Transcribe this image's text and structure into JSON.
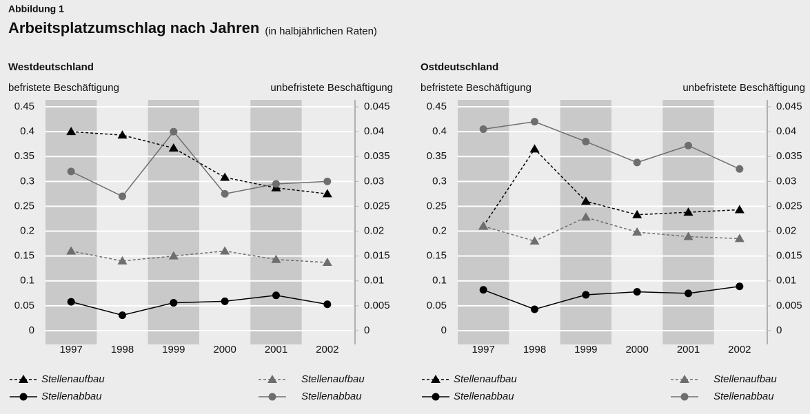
{
  "header": {
    "label": "Abbildung 1",
    "title": "Arbeitsplatzumschlag nach Jahren",
    "subtitle": "(in halbjährlichen Raten)"
  },
  "chart_data": [
    {
      "type": "line",
      "title": "Westdeutschland",
      "ylabel": "befristete Beschäftigung",
      "y2label": "unbefristete Beschäftigung",
      "categories": [
        "1997",
        "1998",
        "1999",
        "2000",
        "2001",
        "2002"
      ],
      "ylim": [
        0,
        0.45
      ],
      "yticks": [
        0,
        0.05,
        0.1,
        0.15,
        0.2,
        0.25,
        0.3,
        0.35,
        0.4,
        0.45
      ],
      "y2lim": [
        0,
        0.045
      ],
      "y2ticks": [
        0,
        0.005,
        0.01,
        0.015,
        0.02,
        0.025,
        0.03,
        0.035,
        0.04,
        0.045
      ],
      "grid": true,
      "series": [
        {
          "name": "Stellenaufbau",
          "color": "#000000",
          "linestyle": "dashed",
          "marker": "triangle",
          "values": [
            0.4,
            0.393,
            0.367,
            0.308,
            0.287,
            0.275
          ]
        },
        {
          "name": "Stellenabbau",
          "color": "#000000",
          "linestyle": "solid",
          "marker": "circle",
          "values": [
            0.058,
            0.031,
            0.056,
            0.059,
            0.071,
            0.053
          ]
        },
        {
          "name": "Stellenaufbau",
          "color": "#6e6e6e",
          "linestyle": "dashed",
          "marker": "triangle",
          "axis": "y2",
          "values": [
            0.016,
            0.014,
            0.015,
            0.016,
            0.0143,
            0.0137
          ]
        },
        {
          "name": "Stellenabbau",
          "color": "#6e6e6e",
          "linestyle": "solid",
          "marker": "circle",
          "axis": "y2",
          "values": [
            0.032,
            0.027,
            0.04,
            0.0275,
            0.0295,
            0.03
          ]
        }
      ]
    },
    {
      "type": "line",
      "title": "Ostdeutschland",
      "ylabel": "befristete Beschäftigung",
      "y2label": "unbefristete Beschäftigung",
      "categories": [
        "1997",
        "1998",
        "1999",
        "2000",
        "2001",
        "2002"
      ],
      "ylim": [
        0,
        0.45
      ],
      "yticks": [
        0,
        0.05,
        0.1,
        0.15,
        0.2,
        0.25,
        0.3,
        0.35,
        0.4,
        0.45
      ],
      "y2lim": [
        0,
        0.045
      ],
      "y2ticks": [
        0,
        0.005,
        0.01,
        0.015,
        0.02,
        0.025,
        0.03,
        0.035,
        0.04,
        0.045
      ],
      "grid": true,
      "series": [
        {
          "name": "Stellenaufbau",
          "color": "#000000",
          "linestyle": "dashed",
          "marker": "triangle",
          "values": [
            0.21,
            0.365,
            0.26,
            0.233,
            0.238,
            0.243
          ]
        },
        {
          "name": "Stellenabbau",
          "color": "#000000",
          "linestyle": "solid",
          "marker": "circle",
          "values": [
            0.082,
            0.043,
            0.072,
            0.078,
            0.075,
            0.089
          ]
        },
        {
          "name": "Stellenaufbau",
          "color": "#6e6e6e",
          "linestyle": "dashed",
          "marker": "triangle",
          "axis": "y2",
          "values": [
            0.021,
            0.018,
            0.0228,
            0.0198,
            0.0189,
            0.0185
          ]
        },
        {
          "name": "Stellenabbau",
          "color": "#6e6e6e",
          "linestyle": "solid",
          "marker": "circle",
          "axis": "y2",
          "values": [
            0.0405,
            0.042,
            0.038,
            0.0338,
            0.0372,
            0.0325
          ]
        }
      ]
    }
  ]
}
